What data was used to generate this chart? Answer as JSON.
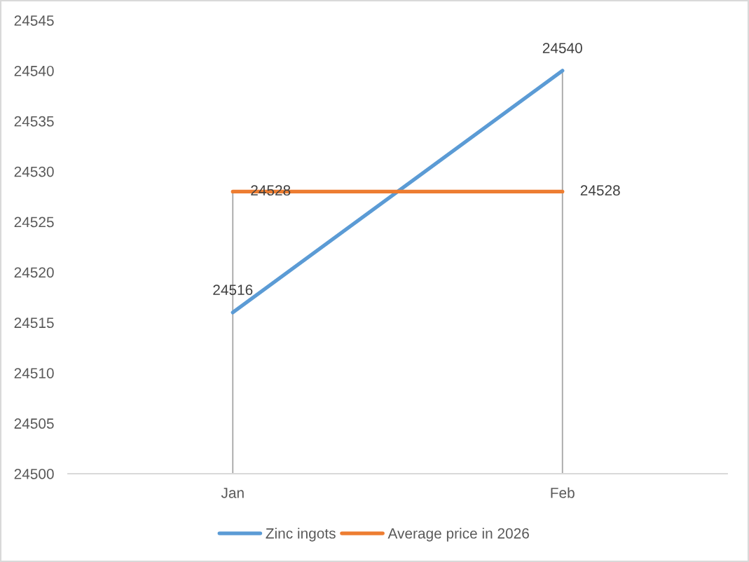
{
  "chart_data": {
    "type": "line",
    "categories": [
      "Jan",
      "Feb"
    ],
    "series": [
      {
        "name": "Zinc ingots",
        "color": "#5b9bd5",
        "values": [
          24516,
          24540
        ]
      },
      {
        "name": "Average price in 2026",
        "color": "#ed7d31",
        "values": [
          24528,
          24528
        ]
      }
    ],
    "ylim": [
      24500,
      24545
    ],
    "yticks": [
      24500,
      24505,
      24510,
      24515,
      24520,
      24525,
      24530,
      24535,
      24540,
      24545
    ],
    "line_style": "solid",
    "data_labels": true,
    "legend": "bottom",
    "ref_lines": [
      {
        "axis": "x",
        "value": "Jan",
        "color": "#a5a5a5"
      },
      {
        "axis": "x",
        "value": "Feb",
        "color": "#a5a5a5"
      }
    ]
  }
}
